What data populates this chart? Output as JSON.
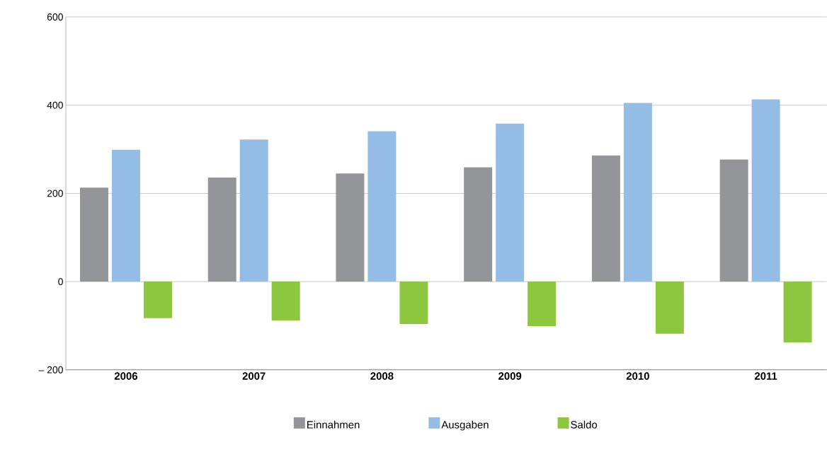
{
  "chart_data": {
    "type": "bar",
    "categories": [
      "2006",
      "2007",
      "2008",
      "2009",
      "2010",
      "2011"
    ],
    "series": [
      {
        "name": "Einnahmen",
        "color": "#939598",
        "values": [
          213,
          236,
          245,
          259,
          286,
          277
        ]
      },
      {
        "name": "Ausgaben",
        "color": "#94bde6",
        "values": [
          299,
          322,
          341,
          358,
          405,
          413
        ]
      },
      {
        "name": "Saldo",
        "color": "#8dc63f",
        "values": [
          -83,
          -88,
          -96,
          -101,
          -118,
          -138
        ]
      }
    ],
    "ylim": [
      -200,
      600
    ],
    "yticks": [
      {
        "value": -200,
        "label": "– 200"
      },
      0,
      200,
      400,
      600
    ],
    "grid": "y",
    "legend": "bottom"
  }
}
